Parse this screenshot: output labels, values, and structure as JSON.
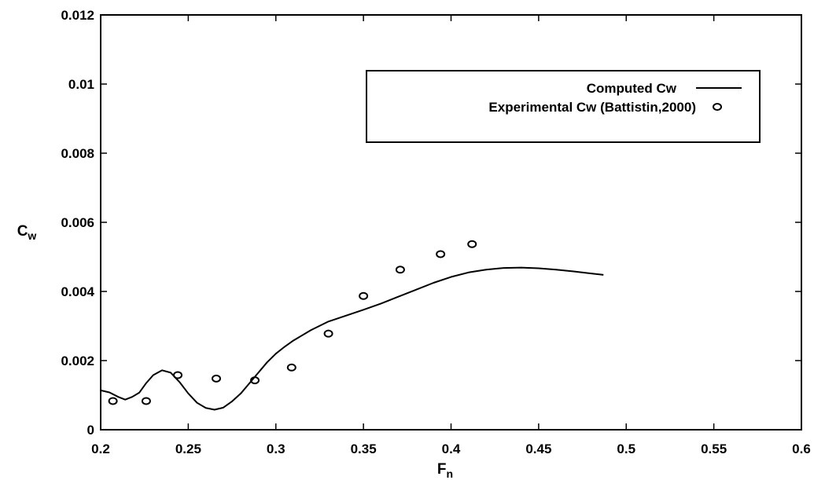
{
  "chart_data": {
    "type": "line",
    "title": "",
    "xlabel": "F",
    "xlabel_sub": "n",
    "ylabel": "C",
    "ylabel_sub": "w",
    "xlim": [
      0.2,
      0.6
    ],
    "ylim": [
      0,
      0.012
    ],
    "xticks": [
      0.2,
      0.25,
      0.3,
      0.35,
      0.4,
      0.45,
      0.5,
      0.55,
      0.6
    ],
    "xtick_labels": [
      "0.2",
      "0.25",
      "0.3",
      "0.35",
      "0.4",
      "0.45",
      "0.5",
      "0.55",
      "0.6"
    ],
    "yticks": [
      0,
      0.002,
      0.004,
      0.006,
      0.008,
      0.01,
      0.012
    ],
    "ytick_labels": [
      "0",
      "0.002",
      "0.004",
      "0.006",
      "0.008",
      "0.01",
      "0.012"
    ],
    "grid": false,
    "legend_position": "top-right",
    "series": [
      {
        "name": "Computed Cw",
        "style": "line",
        "color": "#000000",
        "x": [
          0.2,
          0.205,
          0.21,
          0.214,
          0.218,
          0.222,
          0.226,
          0.23,
          0.235,
          0.24,
          0.245,
          0.25,
          0.255,
          0.26,
          0.265,
          0.27,
          0.275,
          0.28,
          0.285,
          0.29,
          0.295,
          0.3,
          0.305,
          0.31,
          0.32,
          0.33,
          0.34,
          0.35,
          0.36,
          0.37,
          0.38,
          0.39,
          0.4,
          0.41,
          0.42,
          0.43,
          0.44,
          0.45,
          0.46,
          0.47,
          0.48,
          0.487
        ],
        "y": [
          0.00114,
          0.00108,
          0.00095,
          0.00087,
          0.00095,
          0.00107,
          0.00135,
          0.00158,
          0.00172,
          0.00165,
          0.00138,
          0.00105,
          0.00078,
          0.00063,
          0.00058,
          0.00064,
          0.00082,
          0.00105,
          0.00135,
          0.00165,
          0.00195,
          0.0022,
          0.0024,
          0.00258,
          0.00288,
          0.00313,
          0.0033,
          0.00347,
          0.00365,
          0.00385,
          0.00405,
          0.00425,
          0.00442,
          0.00455,
          0.00463,
          0.00468,
          0.00469,
          0.00467,
          0.00463,
          0.00458,
          0.00452,
          0.00448
        ]
      },
      {
        "name": "Experimental Cw (Battistin,2000)",
        "style": "marker",
        "marker": "open-circle",
        "color": "#000000",
        "x": [
          0.207,
          0.226,
          0.244,
          0.266,
          0.288,
          0.309,
          0.33,
          0.35,
          0.371,
          0.394,
          0.412
        ],
        "y": [
          0.00083,
          0.00083,
          0.00158,
          0.00148,
          0.00143,
          0.0018,
          0.00278,
          0.00387,
          0.00463,
          0.00508,
          0.00537
        ]
      }
    ]
  }
}
